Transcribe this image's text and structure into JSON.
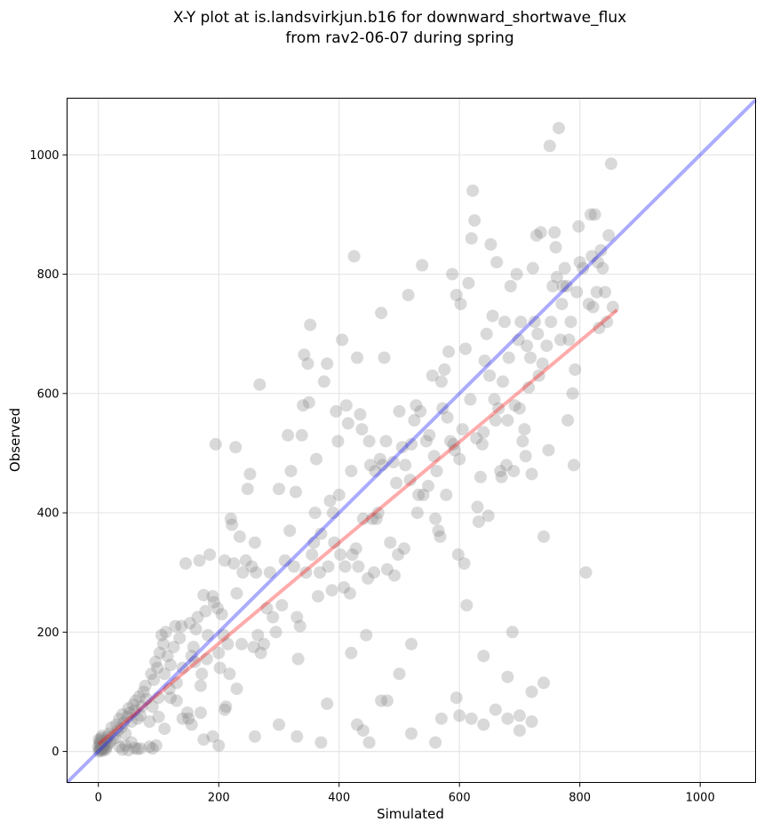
{
  "chart_data": {
    "type": "scatter",
    "title_lines": [
      "X-Y plot at is.landsvirkjun.b16 for downward_shortwave_flux",
      "from rav2-06-07 during spring"
    ],
    "xlabel": "Simulated",
    "ylabel": "Observed",
    "xlim": [
      -52,
      1092
    ],
    "ylim": [
      -52,
      1095
    ],
    "xticks": [
      0,
      200,
      400,
      600,
      800,
      1000
    ],
    "yticks": [
      0,
      200,
      400,
      600,
      800,
      1000
    ],
    "grid": true,
    "point_color": "#808080",
    "one_to_one_line": {
      "color": "#0000ff",
      "x": [
        -52,
        1092
      ],
      "y": [
        -52,
        1092
      ]
    },
    "fit_line": {
      "color": "#ff0000",
      "x": [
        0,
        862
      ],
      "y": [
        12,
        740
      ]
    },
    "points": [
      [
        1,
        0
      ],
      [
        2,
        3
      ],
      [
        3,
        6
      ],
      [
        4,
        2
      ],
      [
        5,
        9
      ],
      [
        6,
        4
      ],
      [
        2,
        12
      ],
      [
        4,
        15
      ],
      [
        7,
        1
      ],
      [
        8,
        7
      ],
      [
        3,
        18
      ],
      [
        5,
        22
      ],
      [
        9,
        11
      ],
      [
        10,
        5
      ],
      [
        6,
        26
      ],
      [
        11,
        14
      ],
      [
        12,
        3
      ],
      [
        0,
        8
      ],
      [
        1,
        20
      ],
      [
        13,
        19
      ],
      [
        14,
        8
      ],
      [
        15,
        24
      ],
      [
        16,
        13
      ],
      [
        18,
        30
      ],
      [
        20,
        17
      ],
      [
        22,
        40
      ],
      [
        25,
        27
      ],
      [
        28,
        22
      ],
      [
        30,
        45
      ],
      [
        32,
        35
      ],
      [
        35,
        55
      ],
      [
        38,
        40
      ],
      [
        40,
        62
      ],
      [
        42,
        48
      ],
      [
        45,
        30
      ],
      [
        48,
        58
      ],
      [
        50,
        72
      ],
      [
        52,
        65
      ],
      [
        55,
        50
      ],
      [
        58,
        78
      ],
      [
        60,
        68
      ],
      [
        62,
        85
      ],
      [
        65,
        55
      ],
      [
        68,
        92
      ],
      [
        70,
        60
      ],
      [
        72,
        75
      ],
      [
        75,
        100
      ],
      [
        78,
        110
      ],
      [
        80,
        88
      ],
      [
        85,
        50
      ],
      [
        88,
        130
      ],
      [
        90,
        75
      ],
      [
        92,
        120
      ],
      [
        95,
        150
      ],
      [
        98,
        140
      ],
      [
        100,
        90
      ],
      [
        102,
        165
      ],
      [
        105,
        195
      ],
      [
        108,
        180
      ],
      [
        110,
        130
      ],
      [
        112,
        200
      ],
      [
        115,
        160
      ],
      [
        118,
        105
      ],
      [
        120,
        145
      ],
      [
        125,
        175
      ],
      [
        128,
        210
      ],
      [
        130,
        115
      ],
      [
        135,
        190
      ],
      [
        138,
        210
      ],
      [
        140,
        140
      ],
      [
        145,
        315
      ],
      [
        148,
        65
      ],
      [
        150,
        55
      ],
      [
        152,
        215
      ],
      [
        155,
        160
      ],
      [
        158,
        175
      ],
      [
        160,
        150
      ],
      [
        162,
        205
      ],
      [
        165,
        225
      ],
      [
        168,
        320
      ],
      [
        170,
        110
      ],
      [
        172,
        130
      ],
      [
        175,
        262
      ],
      [
        178,
        235
      ],
      [
        180,
        155
      ],
      [
        182,
        195
      ],
      [
        185,
        330
      ],
      [
        190,
        260
      ],
      [
        192,
        250
      ],
      [
        195,
        515
      ],
      [
        198,
        240
      ],
      [
        200,
        165
      ],
      [
        202,
        140
      ],
      [
        205,
        230
      ],
      [
        208,
        195
      ],
      [
        210,
        320
      ],
      [
        212,
        75
      ],
      [
        215,
        180
      ],
      [
        218,
        130
      ],
      [
        220,
        390
      ],
      [
        222,
        380
      ],
      [
        225,
        315
      ],
      [
        228,
        510
      ],
      [
        230,
        265
      ],
      [
        235,
        360
      ],
      [
        238,
        180
      ],
      [
        240,
        300
      ],
      [
        245,
        320
      ],
      [
        248,
        440
      ],
      [
        252,
        465
      ],
      [
        255,
        310
      ],
      [
        258,
        175
      ],
      [
        260,
        350
      ],
      [
        262,
        300
      ],
      [
        265,
        195
      ],
      [
        268,
        615
      ],
      [
        270,
        165
      ],
      [
        275,
        180
      ],
      [
        280,
        240
      ],
      [
        285,
        300
      ],
      [
        290,
        225
      ],
      [
        295,
        200
      ],
      [
        300,
        440
      ],
      [
        305,
        245
      ],
      [
        310,
        320
      ],
      [
        315,
        530
      ],
      [
        318,
        370
      ],
      [
        320,
        470
      ],
      [
        325,
        310
      ],
      [
        328,
        435
      ],
      [
        330,
        225
      ],
      [
        332,
        155
      ],
      [
        335,
        210
      ],
      [
        338,
        530
      ],
      [
        340,
        580
      ],
      [
        342,
        665
      ],
      [
        345,
        300
      ],
      [
        348,
        650
      ],
      [
        350,
        585
      ],
      [
        352,
        715
      ],
      [
        355,
        330
      ],
      [
        358,
        350
      ],
      [
        360,
        400
      ],
      [
        362,
        490
      ],
      [
        365,
        260
      ],
      [
        368,
        300
      ],
      [
        370,
        365
      ],
      [
        375,
        620
      ],
      [
        380,
        650
      ],
      [
        382,
        310
      ],
      [
        385,
        420
      ],
      [
        388,
        270
      ],
      [
        390,
        400
      ],
      [
        392,
        350
      ],
      [
        395,
        570
      ],
      [
        398,
        520
      ],
      [
        400,
        430
      ],
      [
        402,
        330
      ],
      [
        405,
        690
      ],
      [
        408,
        275
      ],
      [
        410,
        310
      ],
      [
        412,
        580
      ],
      [
        415,
        550
      ],
      [
        418,
        265
      ],
      [
        420,
        470
      ],
      [
        422,
        330
      ],
      [
        425,
        830
      ],
      [
        428,
        340
      ],
      [
        430,
        660
      ],
      [
        432,
        310
      ],
      [
        435,
        565
      ],
      [
        438,
        540
      ],
      [
        440,
        390
      ],
      [
        445,
        195
      ],
      [
        448,
        290
      ],
      [
        450,
        520
      ],
      [
        452,
        480
      ],
      [
        455,
        390
      ],
      [
        458,
        300
      ],
      [
        460,
        470
      ],
      [
        462,
        390
      ],
      [
        465,
        400
      ],
      [
        468,
        490
      ],
      [
        470,
        735
      ],
      [
        472,
        480
      ],
      [
        475,
        660
      ],
      [
        478,
        520
      ],
      [
        480,
        305
      ],
      [
        485,
        350
      ],
      [
        490,
        485
      ],
      [
        492,
        295
      ],
      [
        495,
        450
      ],
      [
        498,
        330
      ],
      [
        500,
        570
      ],
      [
        505,
        510
      ],
      [
        508,
        340
      ],
      [
        510,
        480
      ],
      [
        515,
        765
      ],
      [
        518,
        455
      ],
      [
        520,
        515
      ],
      [
        525,
        555
      ],
      [
        528,
        580
      ],
      [
        530,
        400
      ],
      [
        532,
        430
      ],
      [
        535,
        570
      ],
      [
        538,
        815
      ],
      [
        540,
        430
      ],
      [
        545,
        520
      ],
      [
        548,
        445
      ],
      [
        550,
        530
      ],
      [
        555,
        630
      ],
      [
        558,
        495
      ],
      [
        560,
        390
      ],
      [
        562,
        470
      ],
      [
        565,
        370
      ],
      [
        568,
        360
      ],
      [
        570,
        620
      ],
      [
        572,
        575
      ],
      [
        575,
        640
      ],
      [
        578,
        430
      ],
      [
        580,
        560
      ],
      [
        582,
        670
      ],
      [
        585,
        520
      ],
      [
        588,
        800
      ],
      [
        590,
        515
      ],
      [
        592,
        505
      ],
      [
        595,
        765
      ],
      [
        598,
        330
      ],
      [
        600,
        490
      ],
      [
        602,
        750
      ],
      [
        605,
        540
      ],
      [
        608,
        315
      ],
      [
        610,
        675
      ],
      [
        612,
        245
      ],
      [
        615,
        785
      ],
      [
        618,
        590
      ],
      [
        620,
        860
      ],
      [
        622,
        940
      ],
      [
        625,
        890
      ],
      [
        628,
        525
      ],
      [
        630,
        410
      ],
      [
        632,
        385
      ],
      [
        635,
        460
      ],
      [
        638,
        515
      ],
      [
        640,
        535
      ],
      [
        642,
        655
      ],
      [
        645,
        700
      ],
      [
        648,
        395
      ],
      [
        650,
        630
      ],
      [
        652,
        850
      ],
      [
        655,
        730
      ],
      [
        658,
        590
      ],
      [
        660,
        555
      ],
      [
        662,
        820
      ],
      [
        665,
        575
      ],
      [
        668,
        470
      ],
      [
        670,
        460
      ],
      [
        672,
        620
      ],
      [
        675,
        720
      ],
      [
        678,
        480
      ],
      [
        680,
        555
      ],
      [
        682,
        660
      ],
      [
        685,
        780
      ],
      [
        688,
        200
      ],
      [
        690,
        470
      ],
      [
        692,
        580
      ],
      [
        695,
        800
      ],
      [
        698,
        690
      ],
      [
        700,
        575
      ],
      [
        702,
        720
      ],
      [
        705,
        520
      ],
      [
        708,
        540
      ],
      [
        710,
        495
      ],
      [
        712,
        680
      ],
      [
        715,
        610
      ],
      [
        718,
        660
      ],
      [
        720,
        465
      ],
      [
        722,
        810
      ],
      [
        725,
        720
      ],
      [
        728,
        865
      ],
      [
        730,
        700
      ],
      [
        732,
        630
      ],
      [
        735,
        870
      ],
      [
        738,
        650
      ],
      [
        740,
        360
      ],
      [
        745,
        680
      ],
      [
        748,
        505
      ],
      [
        750,
        1015
      ],
      [
        752,
        720
      ],
      [
        755,
        780
      ],
      [
        758,
        870
      ],
      [
        760,
        845
      ],
      [
        762,
        795
      ],
      [
        765,
        1045
      ],
      [
        768,
        690
      ],
      [
        770,
        750
      ],
      [
        772,
        780
      ],
      [
        775,
        810
      ],
      [
        778,
        780
      ],
      [
        780,
        555
      ],
      [
        782,
        690
      ],
      [
        785,
        720
      ],
      [
        788,
        600
      ],
      [
        790,
        480
      ],
      [
        792,
        640
      ],
      [
        795,
        770
      ],
      [
        798,
        880
      ],
      [
        800,
        820
      ],
      [
        805,
        810
      ],
      [
        810,
        300
      ],
      [
        815,
        750
      ],
      [
        818,
        900
      ],
      [
        820,
        830
      ],
      [
        822,
        745
      ],
      [
        825,
        900
      ],
      [
        828,
        770
      ],
      [
        830,
        820
      ],
      [
        832,
        710
      ],
      [
        835,
        840
      ],
      [
        838,
        810
      ],
      [
        842,
        770
      ],
      [
        845,
        720
      ],
      [
        848,
        865
      ],
      [
        852,
        985
      ],
      [
        855,
        745
      ],
      [
        600,
        60
      ],
      [
        620,
        55
      ],
      [
        640,
        45
      ],
      [
        660,
        70
      ],
      [
        680,
        55
      ],
      [
        700,
        60
      ],
      [
        720,
        50
      ],
      [
        740,
        115
      ],
      [
        700,
        35
      ],
      [
        720,
        100
      ],
      [
        595,
        90
      ],
      [
        560,
        15
      ],
      [
        520,
        30
      ],
      [
        450,
        15
      ],
      [
        440,
        35
      ],
      [
        430,
        45
      ],
      [
        500,
        130
      ],
      [
        480,
        85
      ],
      [
        420,
        165
      ],
      [
        380,
        80
      ],
      [
        370,
        15
      ],
      [
        330,
        25
      ],
      [
        300,
        45
      ],
      [
        260,
        25
      ],
      [
        230,
        105
      ],
      [
        210,
        70
      ],
      [
        200,
        10
      ],
      [
        190,
        25
      ],
      [
        175,
        20
      ],
      [
        170,
        65
      ],
      [
        155,
        45
      ],
      [
        140,
        55
      ],
      [
        130,
        85
      ],
      [
        120,
        90
      ],
      [
        110,
        38
      ],
      [
        100,
        58
      ],
      [
        96,
        10
      ],
      [
        90,
        5
      ],
      [
        85,
        8
      ],
      [
        70,
        5
      ],
      [
        65,
        4
      ],
      [
        60,
        6
      ],
      [
        50,
        2
      ],
      [
        40,
        3
      ],
      [
        35,
        8
      ],
      [
        55,
        15
      ],
      [
        45,
        10
      ],
      [
        520,
        180
      ],
      [
        470,
        85
      ],
      [
        640,
        160
      ],
      [
        680,
        125
      ],
      [
        570,
        55
      ]
    ]
  }
}
